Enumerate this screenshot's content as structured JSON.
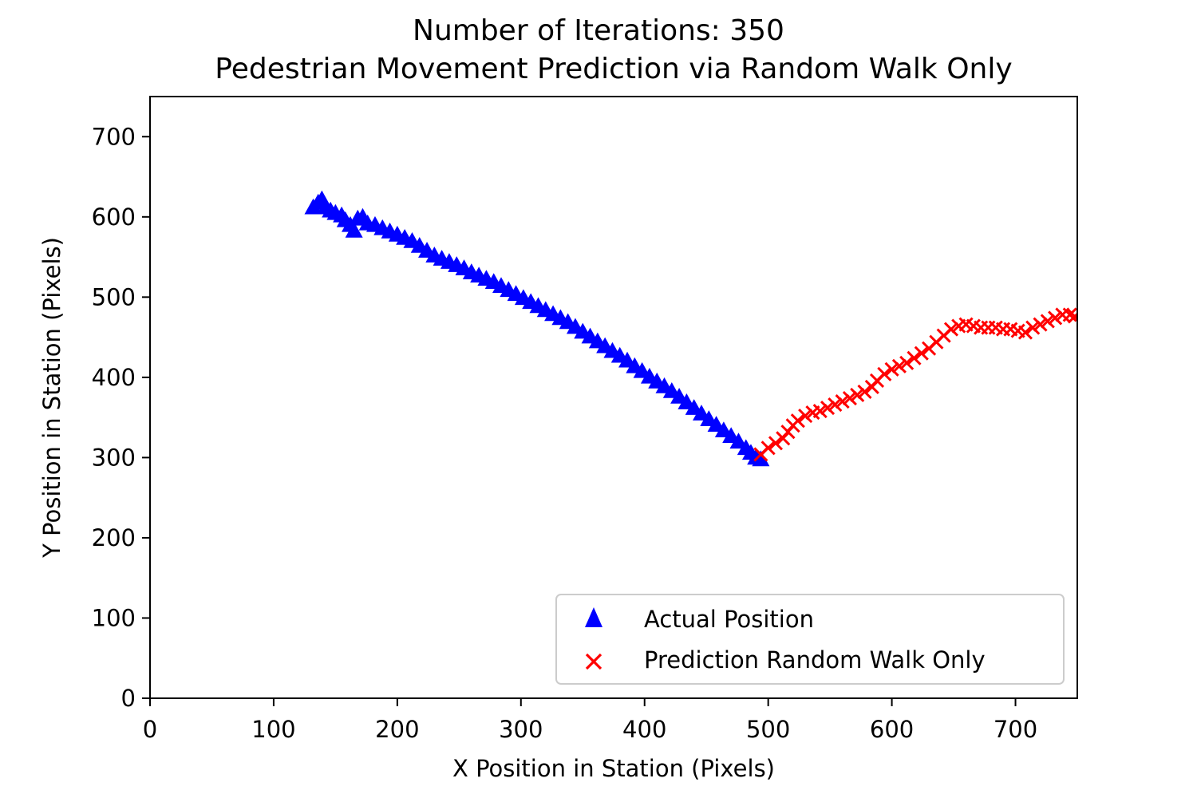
{
  "chart_data": {
    "type": "scatter",
    "title_lines": [
      "Number of Iterations: 350",
      "Pedestrian Movement Prediction via Random Walk Only"
    ],
    "xlabel": "X Position in Station (Pixels)",
    "ylabel": "Y Position in Station (Pixels)",
    "xlim": [
      0,
      750
    ],
    "ylim": [
      0,
      750
    ],
    "xticks": [
      0,
      100,
      200,
      300,
      400,
      500,
      600,
      700
    ],
    "yticks": [
      0,
      100,
      200,
      300,
      400,
      500,
      600,
      700
    ],
    "grid": false,
    "legend_position": "bottom-right",
    "series": [
      {
        "name": "Actual Position",
        "marker": "triangle",
        "color": "#0000ff",
        "points": [
          [
            132,
            612
          ],
          [
            136,
            618
          ],
          [
            139,
            622
          ],
          [
            142,
            612
          ],
          [
            146,
            608
          ],
          [
            150,
            605
          ],
          [
            155,
            602
          ],
          [
            158,
            596
          ],
          [
            162,
            590
          ],
          [
            165,
            583
          ],
          [
            168,
            598
          ],
          [
            172,
            600
          ],
          [
            176,
            592
          ],
          [
            182,
            590
          ],
          [
            188,
            586
          ],
          [
            194,
            582
          ],
          [
            200,
            578
          ],
          [
            206,
            574
          ],
          [
            212,
            570
          ],
          [
            218,
            564
          ],
          [
            224,
            558
          ],
          [
            230,
            552
          ],
          [
            236,
            548
          ],
          [
            242,
            544
          ],
          [
            248,
            540
          ],
          [
            254,
            536
          ],
          [
            260,
            531
          ],
          [
            266,
            527
          ],
          [
            272,
            523
          ],
          [
            278,
            519
          ],
          [
            284,
            514
          ],
          [
            290,
            509
          ],
          [
            296,
            504
          ],
          [
            302,
            499
          ],
          [
            308,
            494
          ],
          [
            314,
            489
          ],
          [
            320,
            484
          ],
          [
            326,
            479
          ],
          [
            332,
            474
          ],
          [
            338,
            469
          ],
          [
            344,
            463
          ],
          [
            350,
            457
          ],
          [
            356,
            451
          ],
          [
            362,
            445
          ],
          [
            368,
            439
          ],
          [
            374,
            433
          ],
          [
            380,
            427
          ],
          [
            386,
            421
          ],
          [
            392,
            414
          ],
          [
            398,
            408
          ],
          [
            404,
            401
          ],
          [
            410,
            395
          ],
          [
            416,
            389
          ],
          [
            422,
            383
          ],
          [
            428,
            376
          ],
          [
            434,
            369
          ],
          [
            440,
            362
          ],
          [
            446,
            355
          ],
          [
            452,
            348
          ],
          [
            458,
            341
          ],
          [
            464,
            334
          ],
          [
            470,
            327
          ],
          [
            476,
            320
          ],
          [
            482,
            312
          ],
          [
            486,
            306
          ],
          [
            490,
            300
          ],
          [
            494,
            298
          ]
        ]
      },
      {
        "name": "Prediction Random Walk Only",
        "marker": "x",
        "color": "#ff0000",
        "points": [
          [
            494,
            304
          ],
          [
            500,
            312
          ],
          [
            506,
            318
          ],
          [
            512,
            324
          ],
          [
            516,
            332
          ],
          [
            520,
            340
          ],
          [
            524,
            346
          ],
          [
            530,
            352
          ],
          [
            536,
            356
          ],
          [
            542,
            358
          ],
          [
            548,
            362
          ],
          [
            554,
            366
          ],
          [
            560,
            370
          ],
          [
            566,
            374
          ],
          [
            572,
            378
          ],
          [
            578,
            382
          ],
          [
            584,
            388
          ],
          [
            588,
            396
          ],
          [
            594,
            404
          ],
          [
            600,
            410
          ],
          [
            606,
            414
          ],
          [
            612,
            418
          ],
          [
            618,
            424
          ],
          [
            624,
            430
          ],
          [
            630,
            436
          ],
          [
            636,
            444
          ],
          [
            642,
            452
          ],
          [
            648,
            460
          ],
          [
            654,
            464
          ],
          [
            660,
            466
          ],
          [
            666,
            464
          ],
          [
            672,
            462
          ],
          [
            678,
            462
          ],
          [
            684,
            462
          ],
          [
            690,
            460
          ],
          [
            696,
            460
          ],
          [
            702,
            458
          ],
          [
            708,
            456
          ],
          [
            714,
            462
          ],
          [
            720,
            466
          ],
          [
            726,
            470
          ],
          [
            732,
            474
          ],
          [
            738,
            478
          ],
          [
            744,
            478
          ],
          [
            748,
            476
          ]
        ]
      }
    ]
  }
}
